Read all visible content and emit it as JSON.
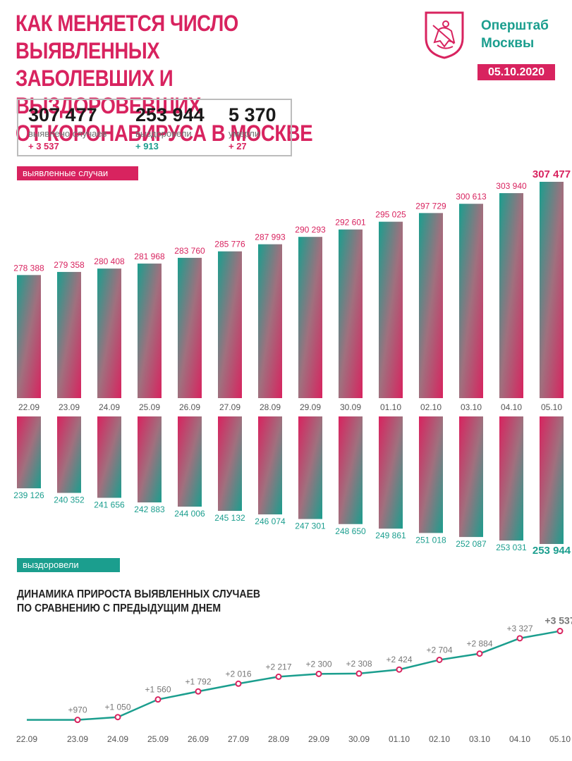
{
  "title": {
    "lines": [
      "КАК МЕНЯЕТСЯ ЧИСЛО ВЫЯВЛЕННЫХ",
      "ЗАБОЛЕВШИХ И ВЫЗДОРОВЕВШИХ",
      "ОТ КОРОНАВИРУСА В МОСКВЕ"
    ]
  },
  "brand": {
    "lines": [
      "Оперштаб",
      "Москвы"
    ],
    "emblem_icon": "moscow-coat-of-arms-icon"
  },
  "date": "05.10.2020",
  "stats": {
    "cases": {
      "value": "307 477",
      "label": "выявлено случаев",
      "delta": "+ 3 537"
    },
    "recovered": {
      "value": "253 944",
      "label": "выздоровели",
      "delta": "+ 913"
    },
    "deaths": {
      "value": "5 370",
      "label": "умерли",
      "delta": "+ 27"
    }
  },
  "labels": {
    "cases_tag": "выявленные случаи",
    "recovered_tag": "выздоровели",
    "growth_title": [
      "ДИНАМИКА ПРИРОСТА ВЫЯВЛЕННЫХ СЛУЧАЕВ",
      "ПО СРАВНЕНИЮ С ПРЕДЫДУЩИМ ДНЕМ"
    ]
  },
  "colors": {
    "pink": "#d8235f",
    "teal": "#1b9e8e"
  },
  "chart_data": [
    {
      "type": "bar",
      "categories": [
        "22.09",
        "23.09",
        "24.09",
        "25.09",
        "26.09",
        "27.09",
        "28.09",
        "29.09",
        "30.09",
        "01.10",
        "02.10",
        "03.10",
        "04.10",
        "05.10"
      ],
      "series": [
        {
          "name": "выявленные случаи",
          "values": [
            278388,
            279358,
            280408,
            281968,
            283760,
            285776,
            287993,
            290293,
            292601,
            295025,
            297729,
            300613,
            303940,
            307477
          ],
          "labels": [
            "278 388",
            "279 358",
            "280 408",
            "281 968",
            "283 760",
            "285 776",
            "287 993",
            "290 293",
            "292 601",
            "295 025",
            "297 729",
            "300 613",
            "303 940",
            "307 477"
          ]
        }
      ]
    },
    {
      "type": "bar",
      "categories": [
        "22.09",
        "23.09",
        "24.09",
        "25.09",
        "26.09",
        "27.09",
        "28.09",
        "29.09",
        "30.09",
        "01.10",
        "02.10",
        "03.10",
        "04.10",
        "05.10"
      ],
      "series": [
        {
          "name": "выздоровели",
          "values": [
            239126,
            240352,
            241656,
            242883,
            244006,
            245132,
            246074,
            247301,
            248650,
            249861,
            251018,
            252087,
            253031,
            253944
          ],
          "labels": [
            "239 126",
            "240 352",
            "241 656",
            "242 883",
            "244 006",
            "245 132",
            "246 074",
            "247 301",
            "248 650",
            "249 861",
            "251 018",
            "252 087",
            "253 031",
            "253 944"
          ]
        }
      ]
    },
    {
      "type": "line",
      "title": "ДИНАМИКА ПРИРОСТА ВЫЯВЛЕННЫХ СЛУЧАЕВ ПО СРАВНЕНИЮ С ПРЕДЫДУЩИМ ДНЕМ",
      "x": [
        "22.09",
        "23.09",
        "24.09",
        "25.09",
        "26.09",
        "27.09",
        "28.09",
        "29.09",
        "30.09",
        "01.10",
        "02.10",
        "03.10",
        "04.10",
        "05.10"
      ],
      "values": [
        970,
        970,
        1050,
        1560,
        1792,
        2016,
        2217,
        2300,
        2308,
        2424,
        2704,
        2884,
        3327,
        3537
      ],
      "labels": [
        "",
        "+970",
        "+1 050",
        "+1 560",
        "+1 792",
        "+2 016",
        "+2 217",
        "+2 300",
        "+2 308",
        "+2 424",
        "+2 704",
        "+2 884",
        "+3 327",
        "+3 537"
      ],
      "ylim": [
        800,
        3650
      ]
    }
  ]
}
